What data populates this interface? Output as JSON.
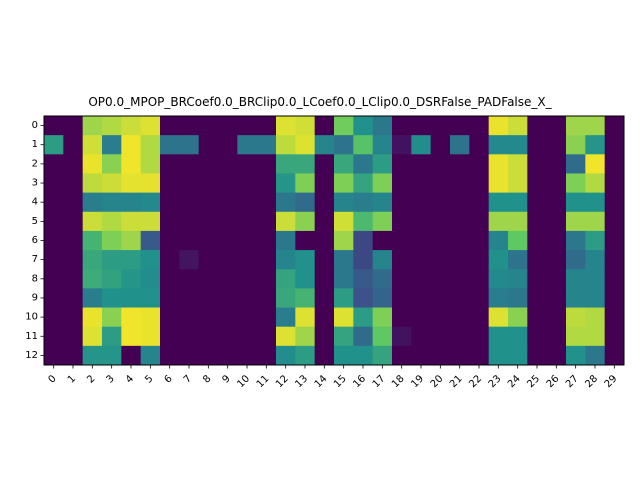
{
  "chart_data": {
    "type": "heatmap",
    "title": "OP0.0_MPOP_BRCoef0.0_BRClip0.0_LCoef0.0_LClip0.0_DSRFalse_PADFalse_X_",
    "xlabel": "",
    "ylabel": "",
    "x_ticks": [
      "0",
      "1",
      "2",
      "3",
      "4",
      "5",
      "6",
      "7",
      "8",
      "9",
      "10",
      "11",
      "12",
      "13",
      "14",
      "15",
      "16",
      "17",
      "18",
      "19",
      "20",
      "21",
      "22",
      "23",
      "24",
      "25",
      "26",
      "27",
      "28",
      "29"
    ],
    "y_ticks": [
      "0",
      "1",
      "2",
      "3",
      "4",
      "5",
      "6",
      "7",
      "8",
      "9",
      "10",
      "11",
      "12"
    ],
    "colormap": "viridis",
    "value_range": [
      0,
      1
    ],
    "grid": false,
    "legend": "none",
    "values": [
      [
        0,
        0,
        0.85,
        0.88,
        0.92,
        0.95,
        0,
        0,
        0,
        0,
        0,
        0,
        0.95,
        0.93,
        0,
        0.78,
        0.5,
        0.4,
        0,
        0,
        0,
        0,
        0,
        0.97,
        0.92,
        0,
        0,
        0.85,
        0.85,
        0
      ],
      [
        0.55,
        0,
        0.93,
        0.42,
        0.98,
        0.88,
        0.38,
        0.38,
        0,
        0,
        0.4,
        0.4,
        0.9,
        0.95,
        0.45,
        0.38,
        0.72,
        0.45,
        0.05,
        0.48,
        0,
        0.38,
        0,
        0.47,
        0.47,
        0,
        0,
        0.82,
        0.52,
        0
      ],
      [
        0,
        0,
        0.97,
        0.82,
        0.98,
        0.88,
        0,
        0,
        0,
        0,
        0,
        0,
        0.6,
        0.6,
        0,
        0.6,
        0.4,
        0.55,
        0,
        0,
        0,
        0,
        0,
        0.97,
        0.92,
        0,
        0,
        0.35,
        0.98,
        0
      ],
      [
        0,
        0,
        0.9,
        0.92,
        0.96,
        0.96,
        0,
        0,
        0,
        0,
        0,
        0,
        0.52,
        0.8,
        0,
        0.8,
        0.58,
        0.8,
        0,
        0,
        0,
        0,
        0,
        0.97,
        0.92,
        0,
        0,
        0.8,
        0.88,
        0
      ],
      [
        0,
        0,
        0.42,
        0.45,
        0.45,
        0.47,
        0,
        0,
        0,
        0,
        0,
        0,
        0.4,
        0.35,
        0,
        0.45,
        0.42,
        0.45,
        0,
        0,
        0,
        0,
        0,
        0.5,
        0.5,
        0,
        0,
        0.5,
        0.5,
        0
      ],
      [
        0,
        0,
        0.92,
        0.88,
        0.92,
        0.92,
        0,
        0,
        0,
        0,
        0,
        0,
        0.92,
        0.82,
        0,
        0.93,
        0.68,
        0.8,
        0,
        0,
        0,
        0,
        0,
        0.85,
        0.85,
        0,
        0,
        0.85,
        0.85,
        0
      ],
      [
        0,
        0,
        0.65,
        0.8,
        0.85,
        0.28,
        0,
        0,
        0,
        0,
        0,
        0,
        0.4,
        0,
        0,
        0.85,
        0.22,
        0,
        0,
        0,
        0,
        0,
        0,
        0.45,
        0.75,
        0,
        0,
        0.4,
        0.55,
        0
      ],
      [
        0,
        0,
        0.6,
        0.55,
        0.55,
        0.5,
        0,
        0.06,
        0,
        0,
        0,
        0,
        0.45,
        0.5,
        0,
        0.4,
        0.22,
        0.45,
        0,
        0,
        0,
        0,
        0,
        0.5,
        0.38,
        0,
        0,
        0.35,
        0.45,
        0
      ],
      [
        0,
        0,
        0.62,
        0.57,
        0.52,
        0.48,
        0,
        0,
        0,
        0,
        0,
        0,
        0.58,
        0.5,
        0,
        0.4,
        0.28,
        0.35,
        0,
        0,
        0,
        0,
        0,
        0.47,
        0.45,
        0,
        0,
        0.45,
        0.45,
        0
      ],
      [
        0,
        0,
        0.42,
        0.5,
        0.5,
        0.5,
        0,
        0,
        0,
        0,
        0,
        0,
        0.6,
        0.65,
        0,
        0.55,
        0.25,
        0.32,
        0,
        0,
        0,
        0,
        0,
        0.42,
        0.4,
        0,
        0,
        0.45,
        0.45,
        0
      ],
      [
        0,
        0,
        0.97,
        0.82,
        0.98,
        0.97,
        0,
        0,
        0,
        0,
        0,
        0,
        0.42,
        0.95,
        0,
        0.95,
        0.55,
        0.8,
        0,
        0,
        0,
        0,
        0,
        0.95,
        0.82,
        0,
        0,
        0.9,
        0.88,
        0
      ],
      [
        0,
        0,
        0.95,
        0.55,
        0.98,
        0.97,
        0,
        0,
        0,
        0,
        0,
        0,
        0.95,
        0.85,
        0,
        0.58,
        0.35,
        0.75,
        0.05,
        0,
        0,
        0,
        0,
        0.5,
        0.5,
        0,
        0,
        0.88,
        0.88,
        0
      ],
      [
        0,
        0,
        0.52,
        0.52,
        0,
        0.45,
        0,
        0,
        0,
        0,
        0,
        0,
        0.48,
        0.55,
        0,
        0.5,
        0.5,
        0.58,
        0,
        0,
        0,
        0,
        0,
        0.5,
        0.5,
        0,
        0,
        0.5,
        0.4,
        0
      ]
    ]
  }
}
